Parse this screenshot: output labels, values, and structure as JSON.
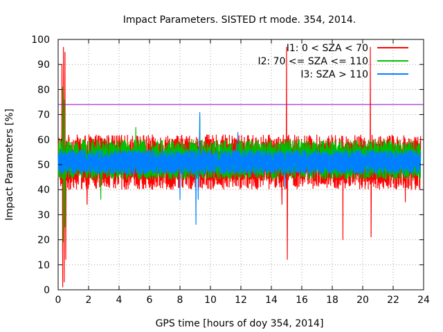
{
  "chart_data": {
    "type": "line",
    "title": "Impact Parameters. SISTED rt mode. 354, 2014.",
    "xlabel": "GPS time [hours of doy 354, 2014]",
    "ylabel": "Impact Parameters [%]",
    "xlim": [
      0,
      24
    ],
    "ylim": [
      0,
      100
    ],
    "x_ticks": [
      0,
      2,
      4,
      6,
      8,
      10,
      12,
      14,
      16,
      18,
      20,
      22,
      24
    ],
    "y_ticks": [
      0,
      10,
      20,
      30,
      40,
      50,
      60,
      70,
      80,
      90,
      100
    ],
    "grid": true,
    "legend_position": "top-right",
    "threshold": {
      "value": 74,
      "color": "#9400d3"
    },
    "series": [
      {
        "name": "I1: 0 < SZA < 70",
        "color": "#ff0000",
        "x_range": [
          0,
          23.8
        ],
        "center": 51,
        "spread": 11,
        "spikes": [
          [
            0.3,
            1
          ],
          [
            0.35,
            97
          ],
          [
            0.4,
            3
          ],
          [
            0.45,
            95
          ],
          [
            0.25,
            90
          ],
          [
            0.5,
            12
          ],
          [
            1.9,
            34
          ],
          [
            15.0,
            97
          ],
          [
            15.05,
            12
          ],
          [
            14.7,
            34
          ],
          [
            18.7,
            20
          ],
          [
            20.5,
            97
          ],
          [
            20.55,
            21
          ],
          [
            22.8,
            35
          ],
          [
            23.2,
            40
          ]
        ]
      },
      {
        "name": "I2: 70 <= SZA <= 110",
        "color": "#00c000",
        "x_range": [
          0,
          23.8
        ],
        "center": 52,
        "spread": 8,
        "spikes": [
          [
            0.3,
            81
          ],
          [
            0.35,
            19
          ],
          [
            0.4,
            76
          ],
          [
            0.45,
            25
          ],
          [
            2.8,
            36
          ],
          [
            5.1,
            65
          ],
          [
            9.3,
            70
          ]
        ]
      },
      {
        "name": "I3: SZA > 110",
        "color": "#0080ff",
        "x_range": [
          0,
          23.8
        ],
        "center": 51,
        "spread": 5,
        "spikes": [
          [
            9.05,
            26
          ],
          [
            9.3,
            71
          ],
          [
            8.0,
            36
          ],
          [
            9.2,
            36
          ],
          [
            11.8,
            63
          ],
          [
            14.9,
            41
          ]
        ]
      }
    ]
  }
}
